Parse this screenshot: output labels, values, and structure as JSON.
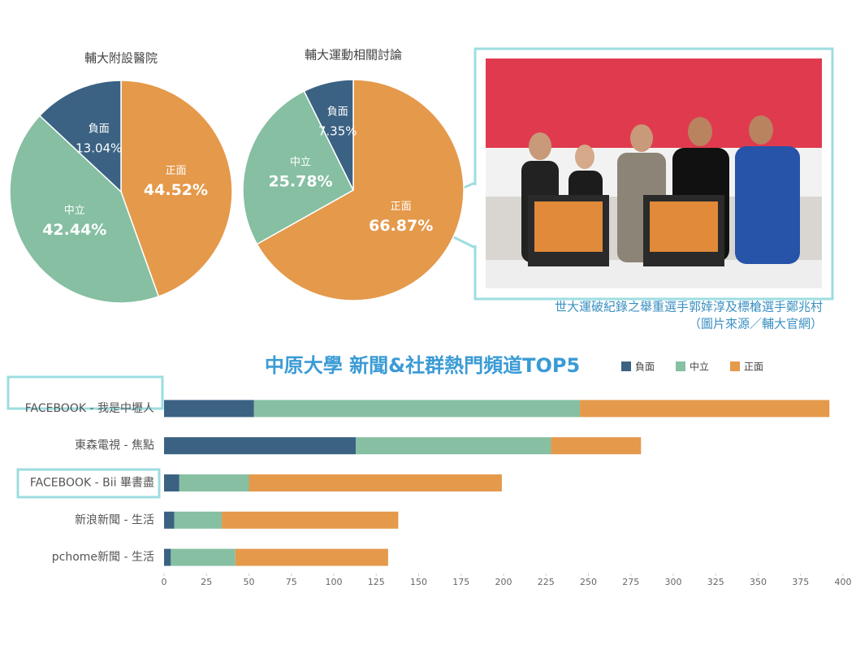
{
  "chart_data": [
    {
      "type": "pie",
      "title": "輔大附設醫院",
      "categories": [
        "正面",
        "中立",
        "負面"
      ],
      "values": [
        44.52,
        42.44,
        13.04
      ],
      "value_labels": [
        "44.52%",
        "42.44%",
        "13.04%"
      ],
      "colors": [
        "#e5994b",
        "#86bfa2",
        "#3b6283"
      ]
    },
    {
      "type": "pie",
      "title": "輔大運動相關討論",
      "categories": [
        "正面",
        "中立",
        "負面"
      ],
      "values": [
        66.87,
        25.78,
        7.35
      ],
      "value_labels": [
        "66.87%",
        "25.78%",
        "7.35%"
      ],
      "colors": [
        "#e5994b",
        "#86bfa2",
        "#3b6283"
      ]
    },
    {
      "type": "bar",
      "orientation": "horizontal",
      "stacked": true,
      "title": "中原大學 新聞&社群熱門頻道TOP5",
      "categories": [
        "FACEBOOK - 我是中壢人",
        "東森電視 - 焦點",
        "FACEBOOK - Bii 畢書盡",
        "新浪新聞 - 生活",
        "pchome新聞 - 生活"
      ],
      "series": [
        {
          "name": "負面",
          "color": "#3b6283",
          "values": [
            53,
            113,
            9,
            6,
            4
          ]
        },
        {
          "name": "中立",
          "color": "#86bfa2",
          "values": [
            192,
            115,
            41,
            28,
            38
          ]
        },
        {
          "name": "正面",
          "color": "#e5994b",
          "values": [
            147,
            53,
            149,
            104,
            90
          ]
        }
      ],
      "xlim": [
        0,
        400
      ],
      "xticks": [
        0,
        25,
        50,
        75,
        100,
        125,
        150,
        175,
        200,
        225,
        250,
        275,
        300,
        325,
        350,
        375,
        400
      ],
      "legend": "top"
    }
  ],
  "photo": {
    "caption": [
      "世大運破紀錄之舉重選手郭婞淳及標槍選手鄭兆村",
      "（圖片來源／輔大官網）"
    ]
  }
}
